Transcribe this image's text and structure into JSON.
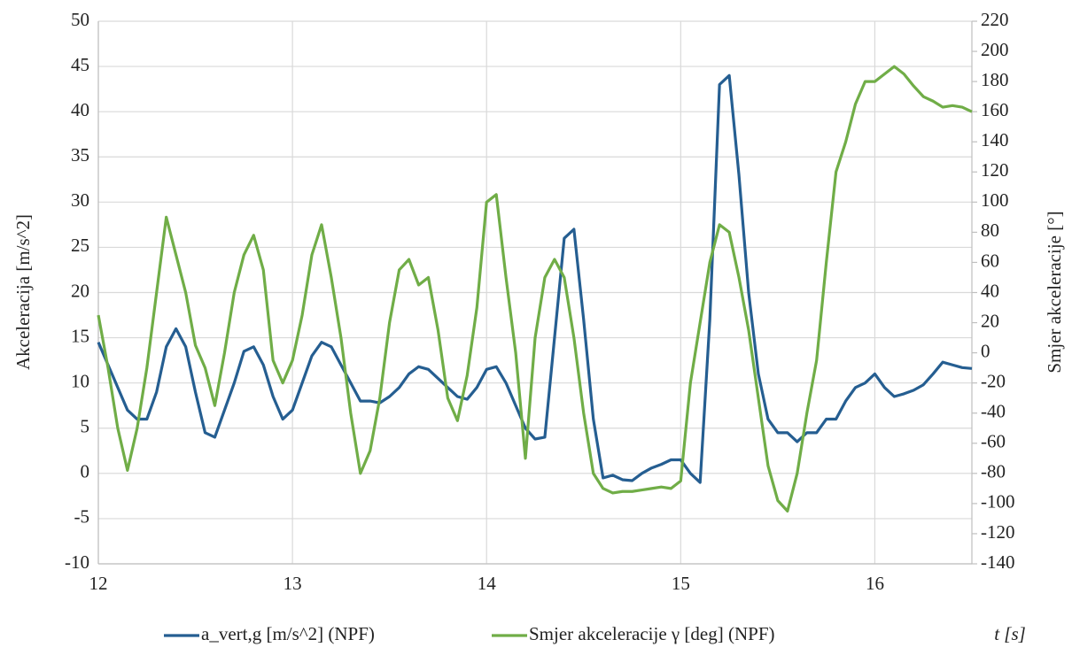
{
  "chart_data": {
    "type": "line",
    "y_label": "Akceleracija  [m/s^2]",
    "y2_label": "Smjer akceleracije  [°]",
    "x_label": "t [s]",
    "x": [
      12.0,
      12.05,
      12.1,
      12.15,
      12.2,
      12.25,
      12.3,
      12.35,
      12.4,
      12.45,
      12.5,
      12.55,
      12.6,
      12.65,
      12.7,
      12.75,
      12.8,
      12.85,
      12.9,
      12.95,
      13.0,
      13.05,
      13.1,
      13.15,
      13.2,
      13.25,
      13.3,
      13.35,
      13.4,
      13.45,
      13.5,
      13.55,
      13.6,
      13.65,
      13.7,
      13.75,
      13.8,
      13.85,
      13.9,
      13.95,
      14.0,
      14.05,
      14.1,
      14.15,
      14.2,
      14.25,
      14.3,
      14.35,
      14.4,
      14.45,
      14.5,
      14.55,
      14.6,
      14.65,
      14.7,
      14.75,
      14.8,
      14.85,
      14.9,
      14.95,
      15.0,
      15.05,
      15.1,
      15.15,
      15.2,
      15.25,
      15.3,
      15.35,
      15.4,
      15.45,
      15.5,
      15.55,
      15.6,
      15.65,
      15.7,
      15.75,
      15.8,
      15.85,
      15.9,
      15.95,
      16.0,
      16.05,
      16.1,
      16.15,
      16.2,
      16.25,
      16.3,
      16.35,
      16.4,
      16.45,
      16.5
    ],
    "series": [
      {
        "name": "a_vert,g [m/s^2] (NPF)",
        "color": "#255e91",
        "axis": "y",
        "values": [
          14.5,
          12,
          9.5,
          7,
          6,
          6,
          9,
          14,
          16,
          14,
          9,
          4.5,
          4,
          7,
          10,
          13.5,
          14,
          12,
          8.5,
          6,
          7,
          10,
          13,
          14.5,
          14,
          12,
          10,
          8,
          8,
          7.8,
          8.5,
          9.5,
          11,
          11.8,
          11.5,
          10.5,
          9.5,
          8.5,
          8.2,
          9.5,
          11.5,
          11.8,
          10,
          7.5,
          5,
          3.8,
          4,
          15,
          26,
          27,
          17,
          6,
          -0.5,
          -0.2,
          -0.7,
          -0.8,
          0,
          0.6,
          1,
          1.5,
          1.5,
          0,
          -1,
          17,
          43,
          44,
          33,
          20,
          11,
          6,
          4.5,
          4.5,
          3.5,
          4.5,
          4.5,
          6,
          6,
          8,
          9.5,
          10,
          11,
          9.5,
          8.5,
          8.8,
          9.2,
          9.8,
          11,
          12.3,
          12,
          11.7,
          11.6
        ]
      },
      {
        "name": "Smjer akceleracije  γ [deg] (NPF)",
        "color": "#70ad47",
        "axis": "y2",
        "values": [
          25,
          -10,
          -50,
          -78,
          -50,
          -10,
          40,
          90,
          65,
          40,
          5,
          -10,
          -35,
          0,
          40,
          65,
          78,
          55,
          -5,
          -20,
          -5,
          25,
          65,
          85,
          50,
          10,
          -40,
          -80,
          -65,
          -30,
          20,
          55,
          62,
          45,
          50,
          15,
          -30,
          -45,
          -15,
          30,
          100,
          105,
          50,
          0,
          -70,
          10,
          50,
          62,
          50,
          10,
          -40,
          -80,
          -90,
          -93,
          -92,
          -92,
          -91,
          -90,
          -89,
          -90,
          -85,
          -20,
          20,
          60,
          85,
          80,
          50,
          15,
          -30,
          -75,
          -98,
          -105,
          -80,
          -40,
          -5,
          60,
          120,
          140,
          165,
          180,
          180,
          185,
          190,
          185,
          177,
          170,
          167,
          163,
          164,
          163,
          160
        ]
      }
    ],
    "xlim": [
      12,
      16.5
    ],
    "xticks": [
      12,
      13,
      14,
      15,
      16
    ],
    "ylim": [
      -10,
      50
    ],
    "yticks": [
      -10,
      -5,
      0,
      5,
      10,
      15,
      20,
      25,
      30,
      35,
      40,
      45,
      50
    ],
    "y2lim": [
      -140,
      220
    ],
    "y2ticks": [
      -140,
      -120,
      -100,
      -80,
      -60,
      -40,
      -20,
      0,
      20,
      40,
      60,
      80,
      100,
      120,
      140,
      160,
      180,
      200,
      220
    ],
    "grid": true,
    "legend": "bottom"
  }
}
